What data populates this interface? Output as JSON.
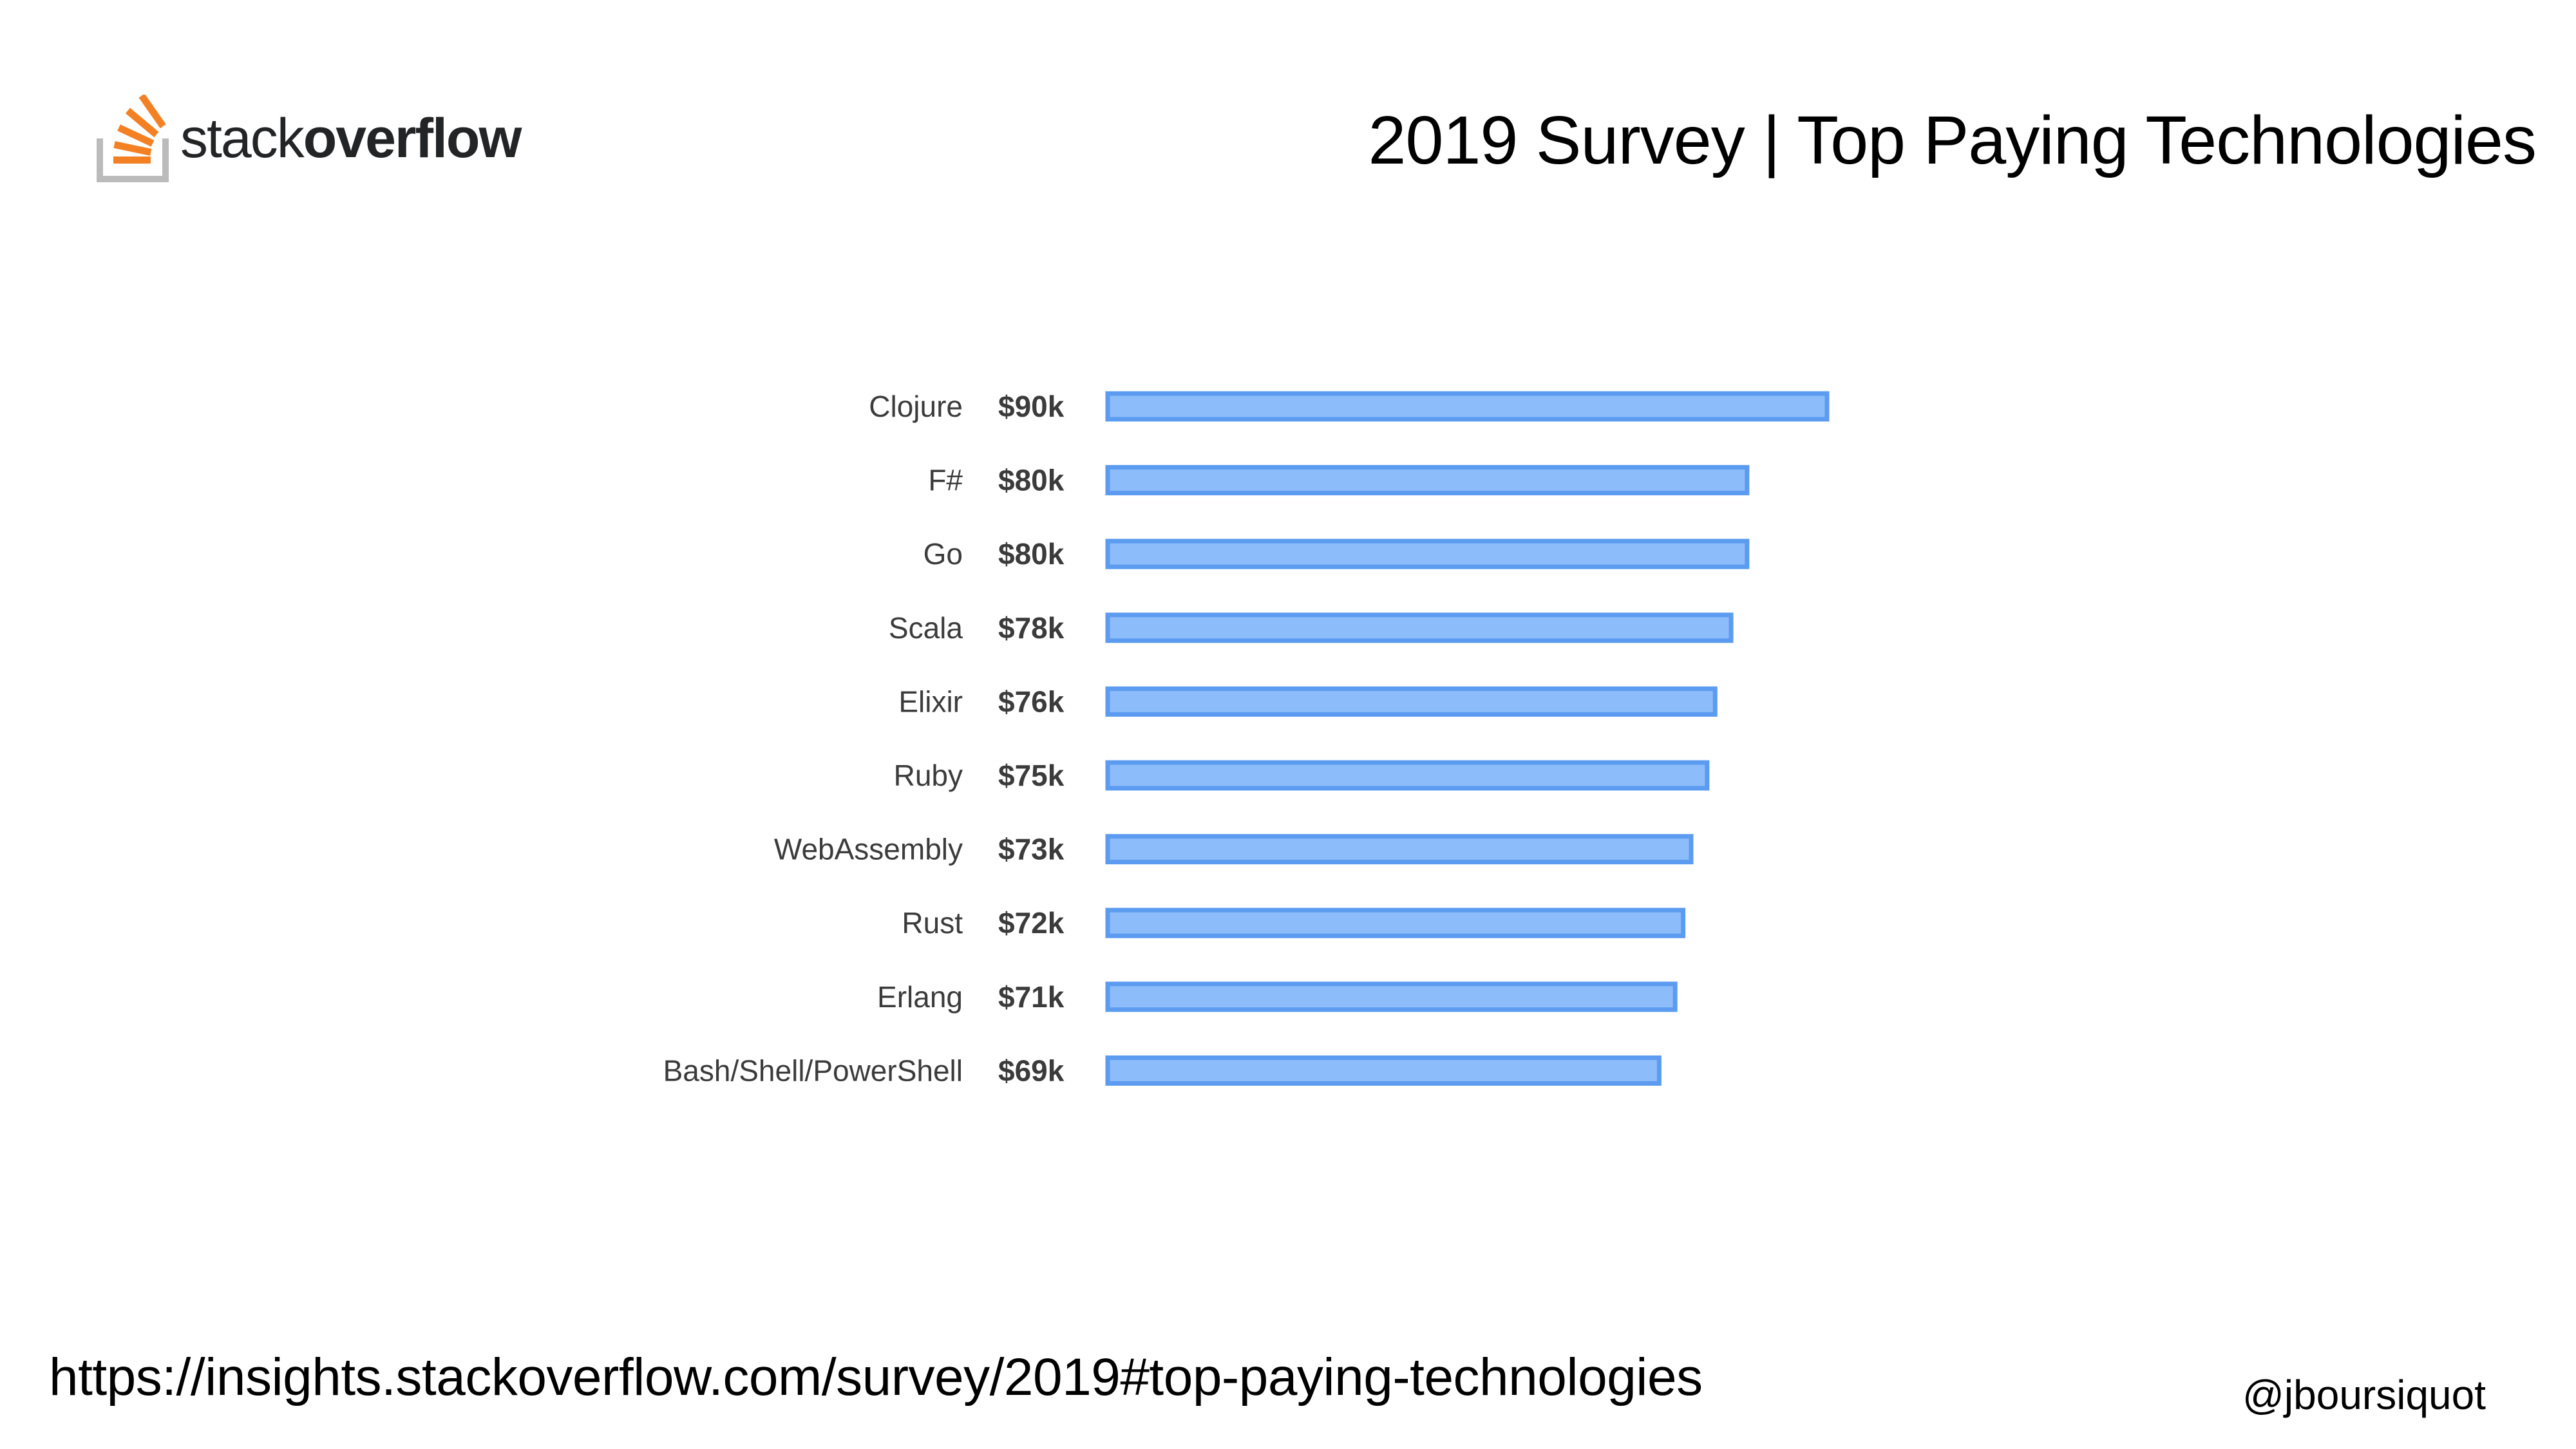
{
  "logo": {
    "text_light": "stack",
    "text_bold": "overflow",
    "icon": "stackoverflow-logo-icon",
    "colors": {
      "tray": "#bcbbbb",
      "stack": "#f48024",
      "text": "#222426"
    }
  },
  "slide": {
    "title": "2019 Survey | Top Paying Technologies",
    "source_url": "https://insights.stackoverflow.com/survey/2019#top-paying-technologies",
    "handle": "@jboursiquot"
  },
  "chart_data": {
    "type": "bar",
    "orientation": "horizontal",
    "categories": [
      "Clojure",
      "F#",
      "Go",
      "Scala",
      "Elixir",
      "Ruby",
      "WebAssembly",
      "Rust",
      "Erlang",
      "Bash/Shell/PowerShell"
    ],
    "values": [
      90,
      80,
      80,
      78,
      76,
      75,
      73,
      72,
      71,
      69
    ],
    "value_labels": [
      "$90k",
      "$80k",
      "$80k",
      "$78k",
      "$76k",
      "$75k",
      "$73k",
      "$72k",
      "$71k",
      "$69k"
    ],
    "unit": "thousands USD",
    "grid": false,
    "legend": "none",
    "colors": {
      "bar_fill": "#8cbcf9",
      "bar_stroke": "#5b9bf0",
      "label": "#3b3b3b"
    }
  }
}
